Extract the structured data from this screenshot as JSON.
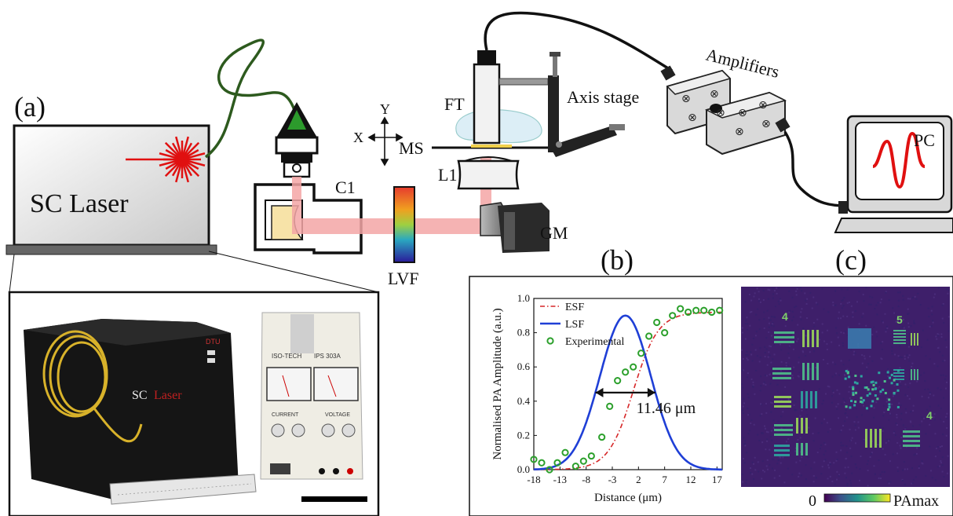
{
  "panel_labels": {
    "a": "(a)",
    "b": "(b)",
    "c": "(c)"
  },
  "setup": {
    "laser_label": "SC Laser",
    "components": {
      "c1": "C1",
      "lvf": "LVF",
      "gm": "GM",
      "l1": "L1",
      "ms": "MS",
      "ft": "FT",
      "axis_stage": "Axis stage",
      "amplifiers": "Amplifiers",
      "pc": "PC"
    },
    "axes": {
      "x": "X",
      "y": "Y"
    }
  },
  "photo": {
    "laser_box_text": "SC",
    "laser_box_text2": "Laser",
    "logo_text": "DTU",
    "psu_brand": "ISO-TECH",
    "psu_model": "IPS 303A",
    "psu_current": "CURRENT",
    "psu_voltage": "VOLTAGE"
  },
  "colors": {
    "beam": "#f4a6a6",
    "laser_red": "#e01010",
    "fiber_green": "#2d5a1e",
    "esf": "#d62728",
    "lsf": "#1f3fd6",
    "experimental": "#2ca02c"
  },
  "chart_data": {
    "type": "line",
    "xlabel": "Distance (μm)",
    "ylabel": "Normalised PA Amplitude (a.u.)",
    "xlim": [
      -18,
      18
    ],
    "ylim": [
      0,
      1.0
    ],
    "x_ticks": [
      "-18",
      "-13",
      "-8",
      "-3",
      "2",
      "7",
      "12",
      "17"
    ],
    "x_tick_values": [
      -18,
      -13,
      -8,
      -3,
      2,
      7,
      12,
      17
    ],
    "y_ticks": [
      "0.0",
      "0.2",
      "0.4",
      "0.6",
      "0.8",
      "1.0"
    ],
    "y_tick_values": [
      0,
      0.2,
      0.4,
      0.6,
      0.8,
      1.0
    ],
    "annotation": "11.46 μm",
    "fwhm": {
      "center": -0.5,
      "width": 11.46,
      "level": 0.45
    },
    "series": [
      {
        "name": "ESF",
        "style": "dash-dot",
        "center": 1.0,
        "k": 0.42,
        "max": 0.92
      },
      {
        "name": "LSF",
        "style": "solid",
        "center": -0.5,
        "sigma": 4.87,
        "peak": 0.9
      },
      {
        "name": "Experimental",
        "style": "marker",
        "x": [
          -18,
          -16.5,
          -15,
          -13.5,
          -12,
          -10,
          -8.5,
          -7,
          -5,
          -3.5,
          -2,
          -0.5,
          1,
          2.5,
          4,
          5.5,
          7,
          8.5,
          10,
          11.5,
          13,
          14.5,
          16,
          17.5
        ],
        "y": [
          0.06,
          0.04,
          0.0,
          0.04,
          0.1,
          0.02,
          0.05,
          0.08,
          0.19,
          0.37,
          0.52,
          0.57,
          0.6,
          0.68,
          0.78,
          0.86,
          0.8,
          0.9,
          0.94,
          0.92,
          0.93,
          0.93,
          0.92,
          0.93
        ]
      }
    ]
  },
  "image_c": {
    "colorbar_min": "0",
    "colorbar_max": "PAmax",
    "group_labels": [
      "4",
      "5",
      "4"
    ]
  }
}
